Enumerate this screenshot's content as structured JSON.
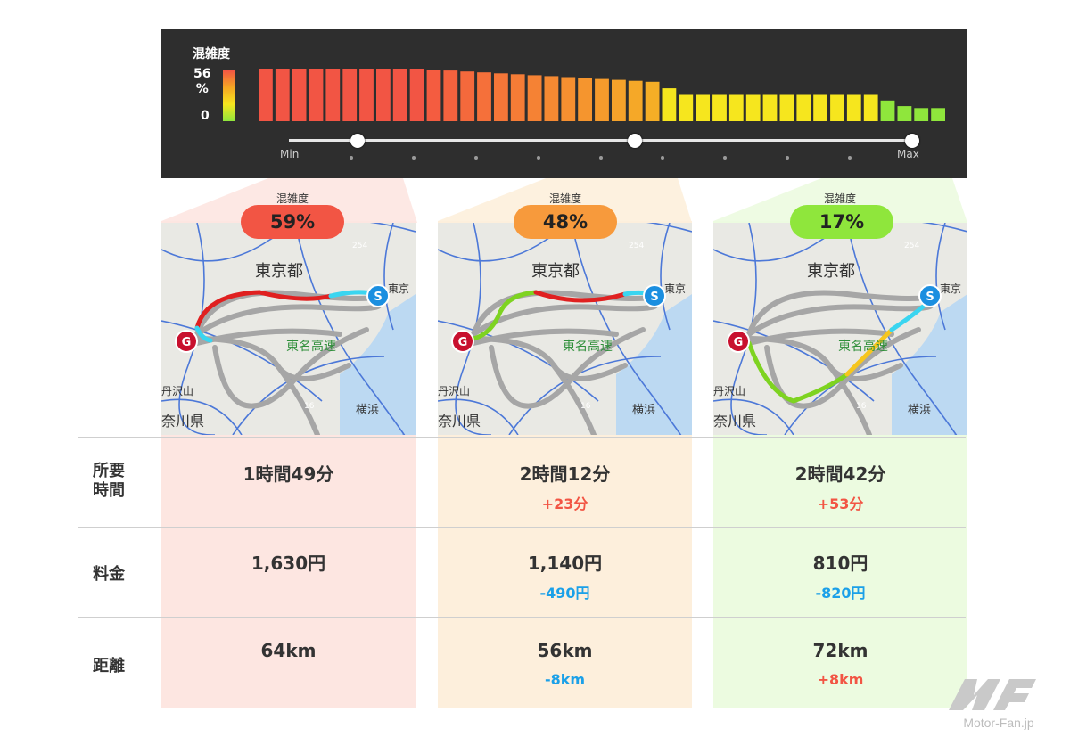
{
  "panel": {
    "title": "混雑度",
    "legend_max": "56\n%",
    "legend_min": "0",
    "slider_min": "Min",
    "slider_max": "Max"
  },
  "chart_data": {
    "type": "bar",
    "title": "混雑度",
    "ylim": [
      0,
      56
    ],
    "values": [
      56,
      56,
      56,
      56,
      56,
      56,
      56,
      56,
      56,
      56,
      55,
      54,
      53,
      52,
      51,
      50,
      49,
      48,
      47,
      46,
      45,
      44,
      43,
      42,
      35,
      28,
      28,
      28,
      28,
      28,
      28,
      28,
      28,
      28,
      28,
      28,
      28,
      22,
      16,
      14,
      14
    ],
    "colors": [
      "#f25544",
      "#f25544",
      "#f25544",
      "#f25544",
      "#f25544",
      "#f25544",
      "#f25544",
      "#f25544",
      "#f25544",
      "#f25544",
      "#f45c40",
      "#f4623e",
      "#f4693c",
      "#f5703a",
      "#f57638",
      "#f57c36",
      "#f58234",
      "#f58932",
      "#f58f30",
      "#f5952e",
      "#f59b2c",
      "#f5a22a",
      "#f5a828",
      "#f5ae26",
      "#f6e61e",
      "#f6e61e",
      "#f6e61e",
      "#f6e61e",
      "#f6e61e",
      "#f6e61e",
      "#f6e61e",
      "#f6e61e",
      "#f6e61e",
      "#f6e61e",
      "#f6e61e",
      "#f6e61e",
      "#f6e61e",
      "#8fe63c",
      "#8fe63c",
      "#8fe63c",
      "#8fe63c"
    ],
    "slider": {
      "positions": [
        0.11,
        0.555,
        1.0
      ],
      "ticks": 10
    }
  },
  "columns": [
    {
      "congestion_label": "混雑度",
      "congestion": "59%",
      "pill_color": "#f25544",
      "bg": "#fde6e1",
      "map": {
        "city": "東京都",
        "road": "東名高速",
        "yokohama": "横浜",
        "tanzawa": "丹沢山",
        "kanagawa": "奈川県",
        "r16": "16",
        "r254": "254",
        "goal": "G",
        "start": "S",
        "tokyo_small": "東京"
      },
      "time": "1時間49分",
      "time_diff": "",
      "fare": "1,630円",
      "fare_diff": "",
      "dist": "64km",
      "dist_diff": ""
    },
    {
      "congestion_label": "混雑度",
      "congestion": "48%",
      "pill_color": "#f79a3c",
      "bg": "#fdefdc",
      "map": {
        "city": "東京都",
        "road": "東名高速",
        "yokohama": "横浜",
        "tanzawa": "丹沢山",
        "kanagawa": "奈川県",
        "r16": "16",
        "r254": "254",
        "goal": "G",
        "start": "S",
        "tokyo_small": "東京"
      },
      "time": "2時間12分",
      "time_diff": "+23分",
      "fare": "1,140円",
      "fare_diff": "-490円",
      "dist": "56km",
      "dist_diff": "-8km"
    },
    {
      "congestion_label": "混雑度",
      "congestion": "17%",
      "pill_color": "#8fe63c",
      "bg": "#ecfbe0",
      "map": {
        "city": "東京都",
        "road": "東名高速",
        "yokohama": "横浜",
        "tanzawa": "丹沢山",
        "kanagawa": "奈川県",
        "r16": "16",
        "r254": "254",
        "goal": "G",
        "start": "S",
        "tokyo_small": "東京"
      },
      "time": "2時間42分",
      "time_diff": "+53分",
      "fare": "810円",
      "fare_diff": "-820円",
      "dist": "72km",
      "dist_diff": "+8km"
    }
  ],
  "rows": {
    "time": "所要\n時間",
    "fare": "料金",
    "dist": "距離"
  },
  "logo": {
    "text": "Motor-Fan.jp",
    "mark": "MF"
  }
}
